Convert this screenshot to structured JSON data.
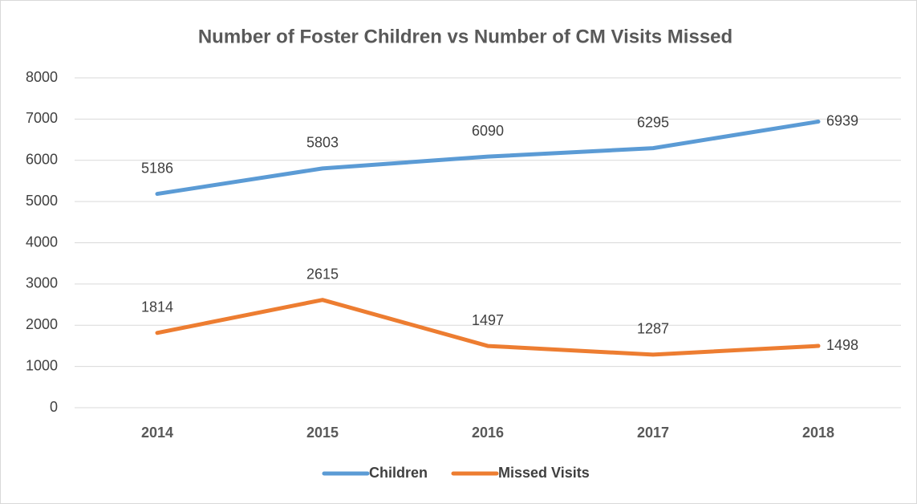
{
  "chart_data": {
    "type": "line",
    "title": "Number of Foster Children vs Number of CM Visits Missed",
    "categories": [
      "2014",
      "2015",
      "2016",
      "2017",
      "2018"
    ],
    "series": [
      {
        "name": "Children",
        "color": "#5b9bd5",
        "values": [
          5186,
          5803,
          6090,
          6295,
          6939
        ]
      },
      {
        "name": "Missed Visits",
        "color": "#ed7d31",
        "values": [
          1814,
          2615,
          1497,
          1287,
          1498
        ]
      }
    ],
    "ylim": [
      0,
      8000
    ],
    "yticks": [
      0,
      1000,
      2000,
      3000,
      4000,
      5000,
      6000,
      7000,
      8000
    ],
    "grid": true,
    "legend": "bottom"
  }
}
